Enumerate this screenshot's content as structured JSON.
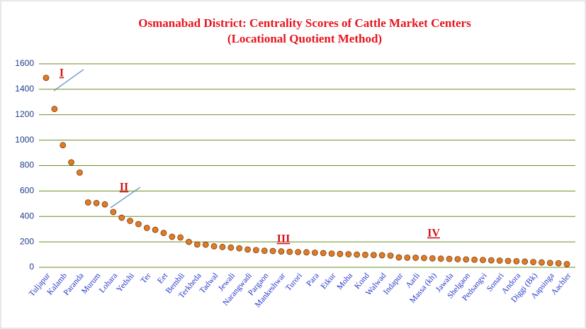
{
  "chart_data": {
    "type": "scatter",
    "title": "Osmanabad  District:  Centrality  Scores of Cattle  Market Centers",
    "subtitle": "(Locational  Quotient  Method)",
    "categories": [
      "Tuljapur",
      null,
      "Kalamb",
      null,
      "Paranda",
      null,
      "Murum",
      null,
      "Lohara",
      null,
      "Yedshi",
      null,
      "Ter",
      null,
      "Eet",
      null,
      "Bembli",
      null,
      "Terkheda",
      null,
      "Tadwal",
      null,
      "Jewali",
      null,
      "Narangwadi",
      null,
      "Pargaon",
      null,
      "Mankeshwar",
      null,
      "Turori",
      null,
      "Para",
      null,
      "Etkur",
      null,
      "Moha",
      null,
      "Kond",
      null,
      "Walwad",
      null,
      "Indapur",
      null,
      "Aarli",
      null,
      "Massa (kh)",
      null,
      "Jawala",
      null,
      "Shelgaon",
      null,
      "Pedsangvi",
      null,
      "Sonari",
      null,
      "Andora",
      null,
      "Diggi (Bk)",
      null,
      "Aapsinga",
      null,
      "Aachler"
    ],
    "values": [
      1490,
      1245,
      960,
      825,
      745,
      510,
      505,
      495,
      435,
      390,
      365,
      340,
      310,
      295,
      270,
      240,
      235,
      200,
      180,
      178,
      165,
      160,
      155,
      150,
      140,
      135,
      130,
      128,
      125,
      122,
      120,
      118,
      115,
      112,
      108,
      105,
      103,
      100,
      98,
      97,
      95,
      92,
      78,
      76,
      75,
      73,
      70,
      68,
      66,
      64,
      62,
      60,
      58,
      55,
      53,
      50,
      48,
      45,
      42,
      38,
      35,
      32,
      25
    ],
    "color": "#e07b25",
    "ylim": [
      0,
      1600
    ],
    "yticks": [
      0,
      200,
      400,
      600,
      800,
      1000,
      1200,
      1400,
      1600
    ],
    "grid": true,
    "grid_color": "#6b8e23",
    "annotations": [
      "I",
      "II",
      "III",
      "IV"
    ]
  }
}
